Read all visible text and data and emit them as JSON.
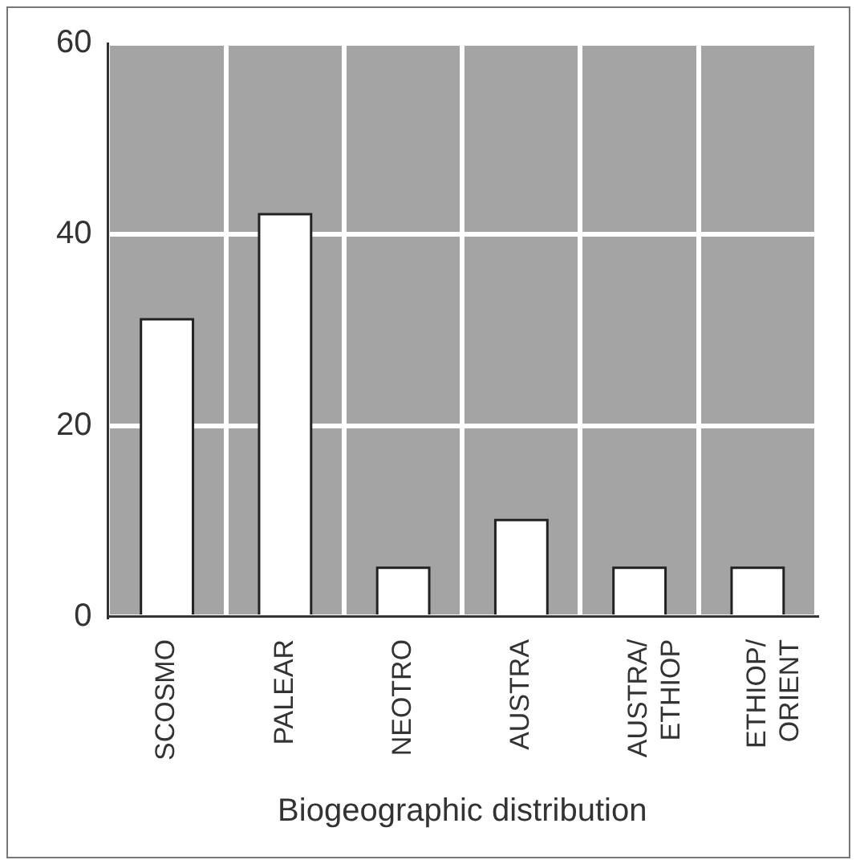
{
  "chart_data": {
    "type": "bar",
    "xlabel": "Biogeographic distribution",
    "categories": [
      "SCOSMO",
      "PALEAR",
      "NEOTRO",
      "AUSTRA",
      "AUSTRA/\nETHIOP",
      "ETHIOP/\nORIENT"
    ],
    "values": [
      31,
      42,
      5,
      10,
      5,
      5
    ],
    "color": "#ffffff",
    "ylim": [
      0,
      60
    ],
    "yticks": [
      0,
      20,
      40,
      60
    ],
    "grid": true
  }
}
